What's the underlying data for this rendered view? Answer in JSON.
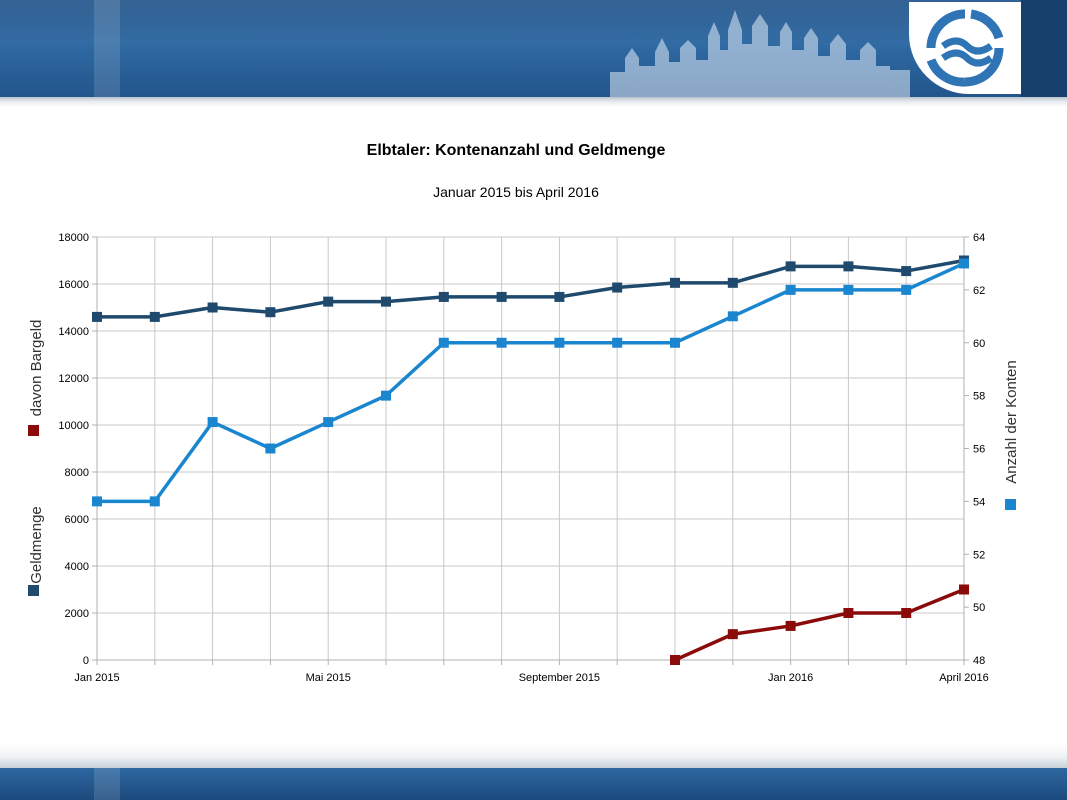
{
  "colors": {
    "banner": "#2f6aa3",
    "banner_dark": "#173f6c",
    "gridline": "#c8c8c8",
    "axis": "#b0b0b0"
  },
  "icons": {
    "logo": "elbtaler-wave-logo-icon",
    "skyline": "city-skyline-silhouette"
  },
  "chart_data": {
    "type": "line",
    "title": "Elbtaler: Kontenanzahl und Geldmenge",
    "subtitle": "Januar 2015 bis April 2016",
    "x": [
      0,
      1,
      2,
      3,
      4,
      5,
      6,
      7,
      8,
      9,
      10,
      11,
      12,
      13,
      14,
      15
    ],
    "x_tick_positions": [
      0,
      4,
      8,
      12,
      15
    ],
    "x_tick_labels": [
      "Jan 2015",
      "Mai 2015",
      "September 2015",
      "Jan 2016",
      "April 2016"
    ],
    "xlim": [
      0,
      15
    ],
    "y_left": {
      "ylim": [
        0,
        18000
      ],
      "ticks": [
        "0",
        "2000",
        "4000",
        "6000",
        "8000",
        "10000",
        "12000",
        "14000",
        "16000",
        "18000"
      ],
      "legend_entries": [
        {
          "label": "Geldmenge",
          "color": "#1f4a6d"
        },
        {
          "label": "davon Bargeld",
          "color": "#8b0a0a"
        }
      ]
    },
    "y_right": {
      "ylim": [
        48,
        64
      ],
      "ticks": [
        "48",
        "50",
        "52",
        "54",
        "56",
        "58",
        "60",
        "62",
        "64"
      ],
      "legend_entries": [
        {
          "label": "Anzahl der Konten",
          "color": "#1a86cf"
        }
      ]
    },
    "grid": true,
    "series": [
      {
        "name": "Geldmenge",
        "axis": "left",
        "color": "#1f4a6d",
        "values": [
          14600,
          14600,
          15000,
          14800,
          15250,
          15250,
          15450,
          15450,
          15450,
          15850,
          16050,
          16050,
          16750,
          16750,
          16550,
          17000
        ]
      },
      {
        "name": "davon Bargeld",
        "axis": "left",
        "color": "#8b0a0a",
        "values": [
          null,
          null,
          null,
          null,
          null,
          null,
          null,
          null,
          null,
          null,
          0,
          1100,
          1450,
          2000,
          2000,
          3000
        ]
      },
      {
        "name": "Anzahl der Konten",
        "axis": "right",
        "color": "#1a86cf",
        "values": [
          54,
          54,
          57,
          56,
          57,
          58,
          60,
          60,
          60,
          60,
          60,
          61,
          62,
          62,
          62,
          63
        ]
      }
    ]
  }
}
